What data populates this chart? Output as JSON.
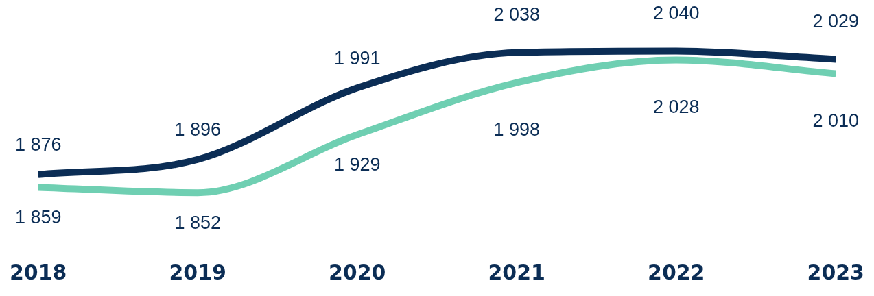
{
  "chart_data": {
    "type": "line",
    "categories": [
      "2018",
      "2019",
      "2020",
      "2021",
      "2022",
      "2023"
    ],
    "series": [
      {
        "color": "#0b2d55",
        "values": [
          1876,
          1896,
          1991,
          2038,
          2040,
          2029
        ],
        "value_labels": [
          "1 876",
          "1 896",
          "1 991",
          "2 038",
          "2 040",
          "2 029"
        ]
      },
      {
        "color": "#6fcfb2",
        "values": [
          1859,
          1852,
          1929,
          1998,
          2028,
          2010
        ],
        "value_labels": [
          "1 859",
          "1 852",
          "1 929",
          "1 998",
          "2 028",
          "2 010"
        ]
      }
    ],
    "grid": false,
    "legend": false,
    "marker": "none",
    "line_style": "solid",
    "tick_labels": "x"
  }
}
